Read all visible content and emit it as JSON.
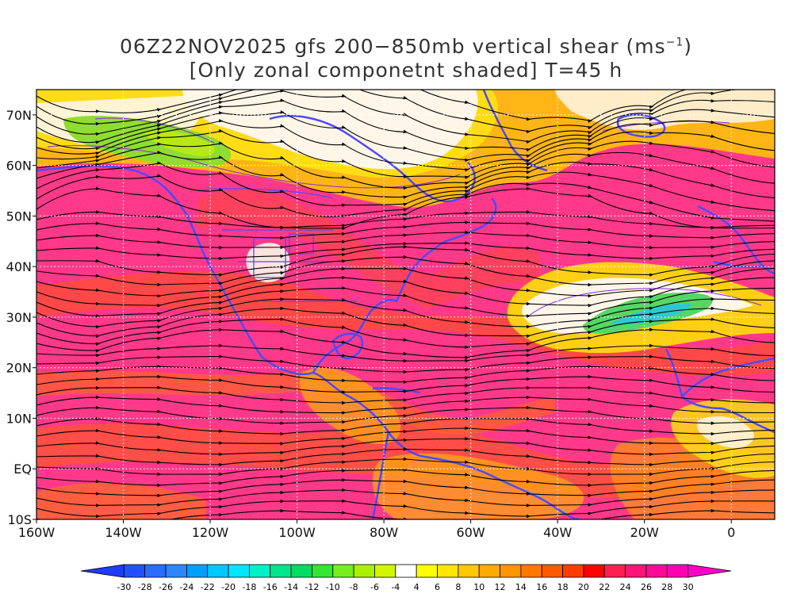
{
  "title": {
    "line1_pre": "06Z22NOV2025 gfs 200−850mb vertical shear (ms",
    "line1_sup": "−1",
    "line1_post": ")",
    "line2": "[Only zonal componetnt shaded] T=45 h"
  },
  "axes": {
    "lon_labels": [
      "160W",
      "140W",
      "120W",
      "100W",
      "80W",
      "60W",
      "40W",
      "20W",
      "0"
    ],
    "lon_values": [
      -160,
      -140,
      -120,
      -100,
      -80,
      -60,
      -40,
      -20,
      0
    ],
    "lat_labels": [
      "70N",
      "60N",
      "50N",
      "40N",
      "30N",
      "20N",
      "10N",
      "EQ",
      "10S"
    ],
    "lat_values": [
      70,
      60,
      50,
      40,
      30,
      20,
      10,
      0,
      -10
    ],
    "lon_range": [
      -160,
      10
    ],
    "lat_range": [
      -10,
      75
    ]
  },
  "colorbar": {
    "labels": [
      "-30",
      "-28",
      "-26",
      "-24",
      "-22",
      "-20",
      "-18",
      "-16",
      "-14",
      "-12",
      "-10",
      "-8",
      "-6",
      "-4",
      "4",
      "6",
      "8",
      "10",
      "12",
      "14",
      "16",
      "18",
      "20",
      "22",
      "24",
      "26",
      "28",
      "30"
    ],
    "colors": [
      "#1e3cff",
      "#2350ff",
      "#2a6cff",
      "#2f86ff",
      "#00a0ff",
      "#00c8ff",
      "#00e6ff",
      "#00f0c8",
      "#00e68c",
      "#00dc64",
      "#32e632",
      "#78ee1e",
      "#aaf000",
      "#d2f500",
      "#ffffff",
      "#ffff00",
      "#ffe600",
      "#ffc800",
      "#ffaa00",
      "#ff9600",
      "#ff7800",
      "#ff5a00",
      "#ff3c00",
      "#ff0000",
      "#ff1e50",
      "#ff1478",
      "#ff0a96",
      "#ff00b4",
      "#ff00c8"
    ]
  },
  "colors": {
    "coastline": "#4a4aff",
    "contour": "#8a2be2",
    "streamline": "#000000",
    "grid": "#ffffff"
  }
}
